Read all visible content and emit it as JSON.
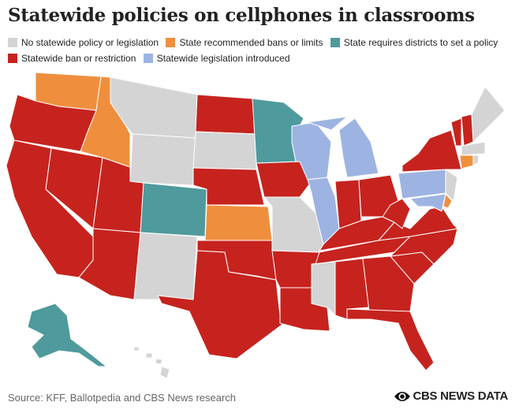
{
  "title": "Statewide policies on cellphones in classrooms",
  "legend": [
    {
      "label": "No statewide policy or legislation",
      "color": "#d4d4d4"
    },
    {
      "label": "State recommended bans or limits",
      "color": "#ef8f3e"
    },
    {
      "label": "State requires districts to set a policy",
      "color": "#4e9a9c"
    },
    {
      "label": "Statewide ban or restriction",
      "color": "#c6231e"
    },
    {
      "label": "Statewide legislation introduced",
      "color": "#9db4e2"
    }
  ],
  "source": "Source: KFF, Ballotpedia and CBS News research",
  "brand": "CBS NEWS DATA"
}
